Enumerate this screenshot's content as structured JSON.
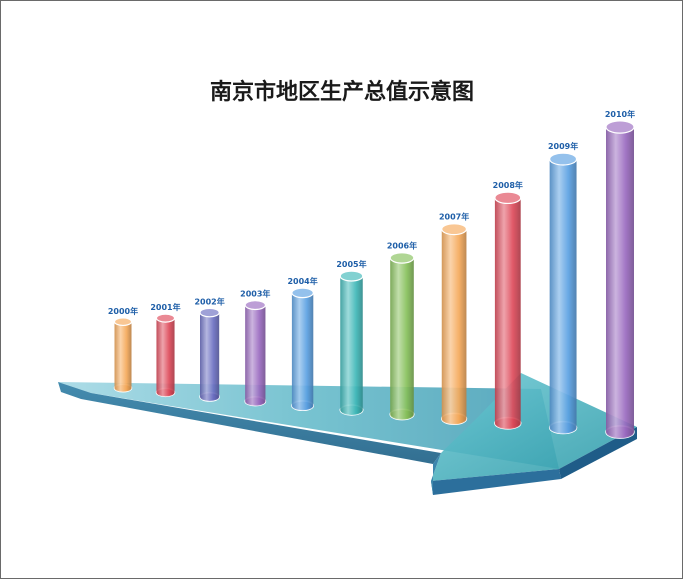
{
  "chart_data": {
    "type": "bar",
    "title": "南京市地区生产总值示意图",
    "categories": [
      "2000年",
      "2001年",
      "2002年",
      "2003年",
      "2004年",
      "2005年",
      "2006年",
      "2007年",
      "2008年",
      "2009年",
      "2010年"
    ],
    "values": [
      1000,
      1120,
      1270,
      1450,
      1700,
      2020,
      2360,
      2860,
      3400,
      4050,
      4600
    ],
    "bar_colors": [
      "#f5a95a",
      "#de4a5a",
      "#6b6fc2",
      "#9a6ac0",
      "#5aa0e2",
      "#3fb8b8",
      "#86c05a",
      "#f5a95a",
      "#de4a5a",
      "#5aa0e2",
      "#9a6ac0"
    ],
    "grid": false,
    "legend": "none"
  }
}
